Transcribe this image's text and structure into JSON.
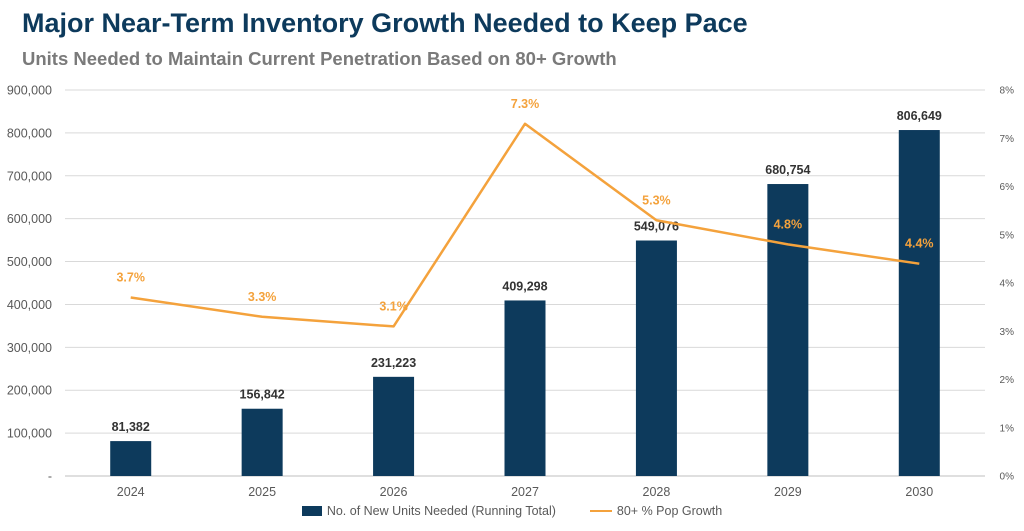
{
  "title": "Major Near-Term Inventory Growth Needed to Keep Pace",
  "subtitle": "Units Needed to Maintain Current Penetration Based on 80+ Growth",
  "colors": {
    "bar": "#0d3a5c",
    "line": "#f4a23c",
    "title": "#0d3a5c",
    "subtitle": "#7a7a7a"
  },
  "chart_data": {
    "type": "bar",
    "categories": [
      "2024",
      "2025",
      "2026",
      "2027",
      "2028",
      "2029",
      "2030"
    ],
    "series": [
      {
        "name": "No. of New Units Needed (Running Total)",
        "type": "bar",
        "axis": "left",
        "values": [
          81382,
          156842,
          231223,
          409298,
          549076,
          680754,
          806649
        ],
        "labels": [
          "81,382",
          "156,842",
          "231,223",
          "409,298",
          "549,076",
          "680,754",
          "806,649"
        ]
      },
      {
        "name": "80+ % Pop Growth",
        "type": "line",
        "axis": "right",
        "values": [
          3.7,
          3.3,
          3.1,
          7.3,
          5.3,
          4.8,
          4.4
        ],
        "labels": [
          "3.7%",
          "3.3%",
          "3.1%",
          "7.3%",
          "5.3%",
          "4.8%",
          "4.4%"
        ]
      }
    ],
    "y_left": {
      "ylim": [
        0,
        900000
      ],
      "ticks": [
        "-",
        "100,000",
        "200,000",
        "300,000",
        "400,000",
        "500,000",
        "600,000",
        "700,000",
        "800,000",
        "900,000"
      ]
    },
    "y_right": {
      "ylim": [
        0,
        8
      ],
      "ticks": [
        "0%",
        "1%",
        "2%",
        "3%",
        "4%",
        "5%",
        "6%",
        "7%",
        "8%"
      ]
    },
    "grid": true,
    "legend": "bottom"
  }
}
